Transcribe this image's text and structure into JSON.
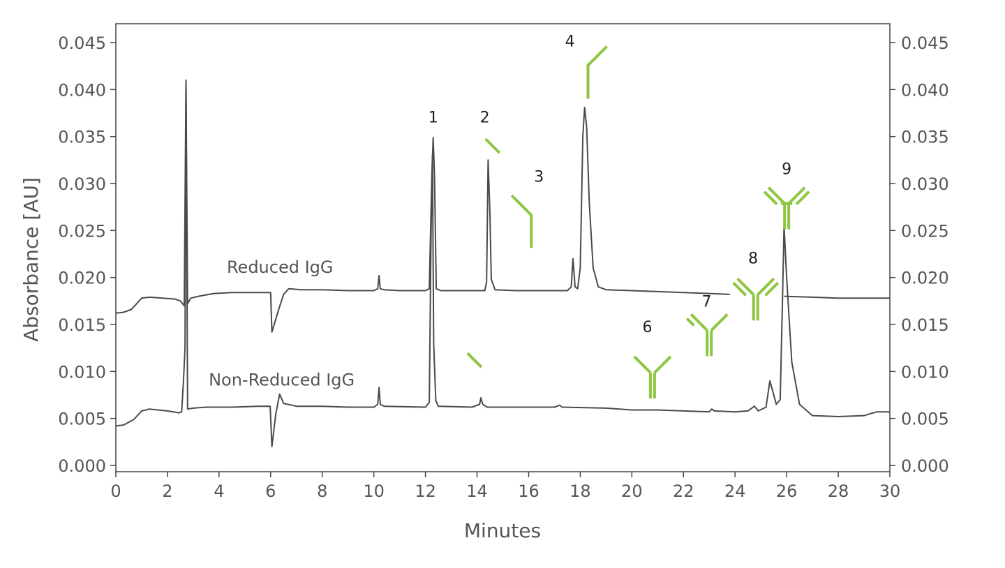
{
  "chart_data": {
    "type": "line",
    "title": "",
    "xlabel": "Minutes",
    "ylabel": "Absorbance [AU]",
    "xlim": [
      0,
      30
    ],
    "ylim": [
      0,
      0.045
    ],
    "x_ticks": [
      "0",
      "2",
      "4",
      "6",
      "8",
      "10",
      "12",
      "14",
      "16",
      "18",
      "20",
      "22",
      "24",
      "26",
      "28",
      "30"
    ],
    "y_ticks": [
      "0.000",
      "0.005",
      "0.010",
      "0.015",
      "0.020",
      "0.025",
      "0.030",
      "0.035",
      "0.040",
      "0.045"
    ],
    "grid": false,
    "right_axis_duplicate": true,
    "line_color": "#4a4a4a",
    "annotation_color": "#8dc63f",
    "series": [
      {
        "name": "Reduced IgG",
        "points": [
          [
            0,
            0.0162
          ],
          [
            0.3,
            0.0163
          ],
          [
            0.6,
            0.0166
          ],
          [
            0.8,
            0.0172
          ],
          [
            1.0,
            0.0178
          ],
          [
            1.3,
            0.0179
          ],
          [
            1.8,
            0.0178
          ],
          [
            2.3,
            0.0177
          ],
          [
            2.5,
            0.0175
          ],
          [
            2.65,
            0.017
          ],
          [
            2.72,
            0.041
          ],
          [
            2.78,
            0.0172
          ],
          [
            2.9,
            0.0178
          ],
          [
            3.2,
            0.018
          ],
          [
            3.8,
            0.0183
          ],
          [
            4.5,
            0.0184
          ],
          [
            5.5,
            0.0184
          ],
          [
            6.0,
            0.0184
          ],
          [
            6.05,
            0.0142
          ],
          [
            6.3,
            0.0165
          ],
          [
            6.5,
            0.0182
          ],
          [
            6.7,
            0.0188
          ],
          [
            7.2,
            0.0187
          ],
          [
            8.0,
            0.0187
          ],
          [
            9.0,
            0.0186
          ],
          [
            10.0,
            0.0186
          ],
          [
            10.15,
            0.0188
          ],
          [
            10.2,
            0.0202
          ],
          [
            10.25,
            0.0188
          ],
          [
            10.4,
            0.0187
          ],
          [
            11.0,
            0.0186
          ],
          [
            12.0,
            0.0186
          ],
          [
            12.15,
            0.0188
          ],
          [
            12.25,
            0.031
          ],
          [
            12.3,
            0.0349
          ],
          [
            12.35,
            0.031
          ],
          [
            12.42,
            0.0188
          ],
          [
            12.6,
            0.0186
          ],
          [
            13.5,
            0.0186
          ],
          [
            14.3,
            0.0186
          ],
          [
            14.37,
            0.0195
          ],
          [
            14.43,
            0.0325
          ],
          [
            14.5,
            0.0268
          ],
          [
            14.55,
            0.0198
          ],
          [
            14.7,
            0.0187
          ],
          [
            15.5,
            0.0186
          ],
          [
            16.5,
            0.0186
          ],
          [
            17.5,
            0.0186
          ],
          [
            17.65,
            0.019
          ],
          [
            17.72,
            0.022
          ],
          [
            17.8,
            0.019
          ],
          [
            17.9,
            0.0188
          ],
          [
            18.0,
            0.021
          ],
          [
            18.1,
            0.035
          ],
          [
            18.17,
            0.0381
          ],
          [
            18.25,
            0.036
          ],
          [
            18.35,
            0.028
          ],
          [
            18.5,
            0.021
          ],
          [
            18.7,
            0.019
          ],
          [
            19.0,
            0.0187
          ],
          [
            20.0,
            0.0186
          ],
          [
            21.0,
            0.0185
          ],
          [
            22.0,
            0.0184
          ],
          [
            23.0,
            0.0183
          ],
          [
            23.8,
            0.0182
          ],
          [
            25.9,
            0.018
          ],
          [
            27.0,
            0.0179
          ],
          [
            28.0,
            0.0178
          ],
          [
            29.0,
            0.0178
          ],
          [
            30.0,
            0.0178
          ]
        ]
      },
      {
        "name": "Non-Reduced IgG",
        "points": [
          [
            0,
            0.0042
          ],
          [
            0.3,
            0.0043
          ],
          [
            0.7,
            0.0049
          ],
          [
            1.0,
            0.0058
          ],
          [
            1.3,
            0.006
          ],
          [
            2.0,
            0.0058
          ],
          [
            2.45,
            0.0056
          ],
          [
            2.55,
            0.0057
          ],
          [
            2.62,
            0.009
          ],
          [
            2.68,
            0.0125
          ],
          [
            2.72,
            0.041
          ],
          [
            2.78,
            0.006
          ],
          [
            3.0,
            0.0061
          ],
          [
            3.5,
            0.0062
          ],
          [
            4.5,
            0.0062
          ],
          [
            5.5,
            0.0063
          ],
          [
            5.98,
            0.0063
          ],
          [
            6.05,
            0.002
          ],
          [
            6.2,
            0.0055
          ],
          [
            6.35,
            0.0076
          ],
          [
            6.5,
            0.0066
          ],
          [
            7.0,
            0.0063
          ],
          [
            8.0,
            0.0063
          ],
          [
            9.0,
            0.0062
          ],
          [
            10.0,
            0.0062
          ],
          [
            10.15,
            0.0065
          ],
          [
            10.2,
            0.0083
          ],
          [
            10.25,
            0.0065
          ],
          [
            10.4,
            0.0063
          ],
          [
            12.0,
            0.0062
          ],
          [
            12.15,
            0.0067
          ],
          [
            12.22,
            0.025
          ],
          [
            12.27,
            0.033
          ],
          [
            12.32,
            0.013
          ],
          [
            12.4,
            0.0069
          ],
          [
            12.5,
            0.0063
          ],
          [
            13.8,
            0.0062
          ],
          [
            14.1,
            0.0065
          ],
          [
            14.15,
            0.0072
          ],
          [
            14.22,
            0.0065
          ],
          [
            14.4,
            0.0062
          ],
          [
            16.0,
            0.0062
          ],
          [
            17.0,
            0.0062
          ],
          [
            17.2,
            0.0064
          ],
          [
            17.3,
            0.0062
          ],
          [
            19.0,
            0.0061
          ],
          [
            20.0,
            0.0059
          ],
          [
            21.0,
            0.0059
          ],
          [
            22.0,
            0.0058
          ],
          [
            23.0,
            0.0057
          ],
          [
            23.1,
            0.006
          ],
          [
            23.2,
            0.0058
          ],
          [
            24.0,
            0.0057
          ],
          [
            24.5,
            0.0058
          ],
          [
            24.75,
            0.0063
          ],
          [
            24.9,
            0.0058
          ],
          [
            25.2,
            0.0062
          ],
          [
            25.35,
            0.009
          ],
          [
            25.45,
            0.008
          ],
          [
            25.6,
            0.0065
          ],
          [
            25.75,
            0.007
          ],
          [
            25.85,
            0.019
          ],
          [
            25.9,
            0.0256
          ],
          [
            26.0,
            0.02
          ],
          [
            26.2,
            0.011
          ],
          [
            26.5,
            0.0065
          ],
          [
            27.0,
            0.0053
          ],
          [
            28.0,
            0.0052
          ],
          [
            29.0,
            0.0053
          ],
          [
            29.5,
            0.0057
          ],
          [
            30.0,
            0.0057
          ]
        ]
      }
    ],
    "annotations": [
      {
        "label": "1",
        "x": 12.3,
        "y": 0.0365,
        "glyph": "none"
      },
      {
        "label": "2",
        "x": 14.3,
        "y": 0.0365,
        "glyph": "light-chain",
        "gx": 14.6,
        "gy": 0.034
      },
      {
        "label": "3",
        "x": 16.4,
        "y": 0.0302,
        "glyph": "heavy-chain",
        "gx": 16.1,
        "gy": 0.0265
      },
      {
        "label": "4",
        "x": 17.6,
        "y": 0.0446,
        "glyph": "heavy-chain-long",
        "gx": 18.3,
        "gy": 0.0405
      },
      {
        "label": "",
        "x": 14.0,
        "y": 0.0,
        "glyph": "light-chain",
        "gx": 13.9,
        "gy": 0.0112
      },
      {
        "label": "6",
        "x": 20.6,
        "y": 0.0142,
        "glyph": "half-antibody",
        "gx": 20.8,
        "gy": 0.0095
      },
      {
        "label": "7",
        "x": 22.9,
        "y": 0.0169,
        "glyph": "antibody-one-light",
        "gx": 23.0,
        "gy": 0.014
      },
      {
        "label": "8",
        "x": 24.7,
        "y": 0.0215,
        "glyph": "antibody-two-light",
        "gx": 24.8,
        "gy": 0.0178
      },
      {
        "label": "9",
        "x": 26.0,
        "y": 0.031,
        "glyph": "antibody-full",
        "gx": 26.0,
        "gy": 0.0275
      }
    ],
    "series_labels": [
      {
        "series": "Reduced IgG",
        "x": 4.3,
        "y": 0.0205
      },
      {
        "series": "Non-Reduced IgG",
        "x": 3.6,
        "y": 0.0085
      }
    ]
  }
}
